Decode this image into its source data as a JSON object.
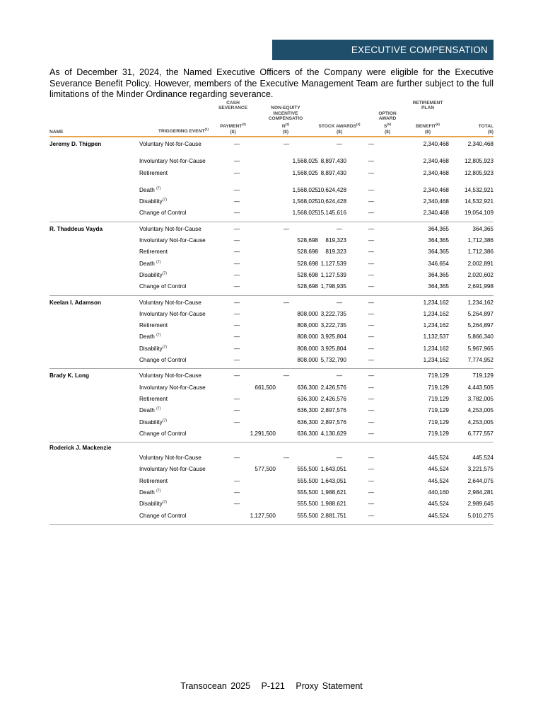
{
  "section_banner": "EXECUTIVE COMPENSATION",
  "intro": "As of December 31, 2024, the Named Executive Officers of the Company were eligible for the Executive Severance Benefit Policy. However, members of the Executive Management Team are further subject to the full limitations of the Minder Ordinance regarding severance.",
  "colors": {
    "banner": "#1f4e6b",
    "header_rule": "#e8a24a"
  },
  "table": {
    "headers": {
      "name": "NAME",
      "event": "TRIGGERING EVENT",
      "event_fn": "(1)",
      "cash": [
        "CASH",
        "SEVERANCE",
        "",
        "PAYMENT"
      ],
      "cash_fn": "(2)",
      "cash_unit": "($)",
      "nonequity": [
        "NON-EQUITY",
        "INCENTIVE",
        "COMPENSATIO",
        "N"
      ],
      "nonequity_fn": "(3)",
      "nonequity_unit": "($)",
      "stock": "STOCK AWARDS",
      "stock_fn": "(4)",
      "stock_unit": "($)",
      "option": [
        "OPTION",
        "AWARD",
        "S"
      ],
      "option_fn": "(5)",
      "option_unit": "($)",
      "retirement": [
        "RETIREMENT",
        "PLAN",
        "",
        "BENEFIT"
      ],
      "retirement_fn": "(6)",
      "retirement_unit": "($)",
      "total": "TOTAL",
      "total_unit": "($)"
    },
    "executives": [
      {
        "name": "Jeremy D. Thigpen",
        "rows": [
          {
            "event": "Voluntary Not-for-Cause",
            "fn": "",
            "v": [
              "—",
              "—",
              "—",
              "—",
              "2,340,468",
              "2,340,468"
            ]
          },
          {
            "event": "Involuntary Not-for-Cause",
            "fn": "",
            "v": [
              "—",
              "1,568,025",
              "8,897,430",
              "—",
              "2,340,468",
              "12,805,923"
            ]
          },
          {
            "event": "Retirement",
            "fn": "",
            "v": [
              "—",
              "1,568,025",
              "8,897,430",
              "—",
              "2,340,468",
              "12,805,923"
            ]
          },
          {
            "event": "Death ",
            "fn": "(7)",
            "v": [
              "—",
              "1,568,025",
              "10,624,428",
              "—",
              "2,340,468",
              "14,532,921"
            ]
          },
          {
            "event": "Disability",
            "fn": "(7)",
            "v": [
              "—",
              "1,568,025",
              "10,624,428",
              "—",
              "2,340,468",
              "14,532,921"
            ]
          },
          {
            "event": "Change of Control",
            "fn": "",
            "v": [
              "—",
              "1,568,025",
              "15,145,616",
              "—",
              "2,340,468",
              "19,054,109"
            ]
          }
        ]
      },
      {
        "name": "R. Thaddeus Vayda",
        "rows": [
          {
            "event": "Voluntary Not-for-Cause",
            "fn": "",
            "v": [
              "—",
              "—",
              "—",
              "—",
              "364,365",
              "364,365"
            ]
          },
          {
            "event": "Involuntary Not-for-Cause",
            "fn": "",
            "v": [
              "—",
              "528,698",
              "819,323",
              "—",
              "364,365",
              "1,712,386"
            ]
          },
          {
            "event": "Retirement",
            "fn": "",
            "v": [
              "—",
              "528,698",
              "819,323",
              "—",
              "364,365",
              "1,712,386"
            ]
          },
          {
            "event": "Death ",
            "fn": "(7)",
            "v": [
              "—",
              "528,698",
              "1,127,539",
              "—",
              "346,654",
              "2,002,891"
            ]
          },
          {
            "event": "Disability",
            "fn": "(7)",
            "v": [
              "—",
              "528,698",
              "1,127,539",
              "—",
              "364,365",
              "2,020,602"
            ]
          },
          {
            "event": "Change of Control",
            "fn": "",
            "v": [
              "—",
              "528,698",
              "1,798,935",
              "—",
              "364,365",
              "2,691,998"
            ]
          }
        ]
      },
      {
        "name": "Keelan I. Adamson",
        "rows": [
          {
            "event": "Voluntary Not-for-Cause",
            "fn": "",
            "v": [
              "—",
              "—",
              "—",
              "—",
              "1,234,162",
              "1,234,162"
            ]
          },
          {
            "event": "Involuntary Not-for-Cause",
            "fn": "",
            "v": [
              "—",
              "808,000",
              "3,222,735",
              "—",
              "1,234,162",
              "5,264,897"
            ]
          },
          {
            "event": "Retirement",
            "fn": "",
            "v": [
              "—",
              "808,000",
              "3,222,735",
              "—",
              "1,234,162",
              "5,264,897"
            ]
          },
          {
            "event": "Death ",
            "fn": "(7)",
            "v": [
              "—",
              "808,000",
              "3,925,804",
              "—",
              "1,132,537",
              "5,866,340"
            ]
          },
          {
            "event": "Disability",
            "fn": "(7)",
            "v": [
              "—",
              "808,000",
              "3,925,804",
              "—",
              "1,234,162",
              "5,967,965"
            ]
          },
          {
            "event": "Change of Control",
            "fn": "",
            "v": [
              "—",
              "808,000",
              "5,732,790",
              "—",
              "1,234,162",
              "7,774,952"
            ]
          }
        ]
      },
      {
        "name": "Brady K. Long",
        "rows": [
          {
            "event": "Voluntary Not-for-Cause",
            "fn": "",
            "v": [
              "—",
              "—",
              "—",
              "—",
              "719,129",
              "719,129"
            ]
          },
          {
            "event": "Involuntary Not-for-Cause",
            "fn": "",
            "v": [
              "661,500",
              "636,300",
              "2,426,576",
              "—",
              "719,129",
              "4,443,505"
            ]
          },
          {
            "event": "Retirement",
            "fn": "",
            "v": [
              "—",
              "636,300",
              "2,426,576",
              "—",
              "719,129",
              "3,782,005"
            ]
          },
          {
            "event": "Death ",
            "fn": "(7)",
            "v": [
              "—",
              "636,300",
              "2,897,576",
              "—",
              "719,129",
              "4,253,005"
            ]
          },
          {
            "event": "Disability",
            "fn": "(7)",
            "v": [
              "—",
              "636,300",
              "2,897,576",
              "—",
              "719,129",
              "4,253,005"
            ]
          },
          {
            "event": "Change of Control",
            "fn": "",
            "v": [
              "1,291,500",
              "636,300",
              "4,130,629",
              "—",
              "719,129",
              "6,777,557"
            ]
          }
        ]
      },
      {
        "name": "Roderick J. Mackenzie",
        "rows": [
          {
            "event": "Voluntary Not-for-Cause",
            "fn": "",
            "v": [
              "—",
              "—",
              "—",
              "—",
              "445,524",
              "445,524"
            ]
          },
          {
            "event": "Involuntary Not-for-Cause",
            "fn": "",
            "v": [
              "577,500",
              "555,500",
              "1,643,051",
              "—",
              "445,524",
              "3,221,575"
            ]
          },
          {
            "event": "Retirement",
            "fn": "",
            "v": [
              "—",
              "555,500",
              "1,643,051",
              "—",
              "445,524",
              "2,644,075"
            ]
          },
          {
            "event": "Death ",
            "fn": "(7)",
            "v": [
              "—",
              "555,500",
              "1,988,621",
              "—",
              "440,160",
              "2,984,281"
            ]
          },
          {
            "event": "Disability",
            "fn": "(7)",
            "v": [
              "—",
              "555,500",
              "1,988,621",
              "—",
              "445,524",
              "2,989,645"
            ]
          },
          {
            "event": "Change of Control",
            "fn": "",
            "v": [
              "1,127,500",
              "555,500",
              "2,881,751",
              "—",
              "445,524",
              "5,010,275"
            ]
          }
        ]
      }
    ]
  },
  "footer": {
    "company": "Transocean 2025",
    "page": "P-121",
    "doc": "Proxy Statement"
  }
}
